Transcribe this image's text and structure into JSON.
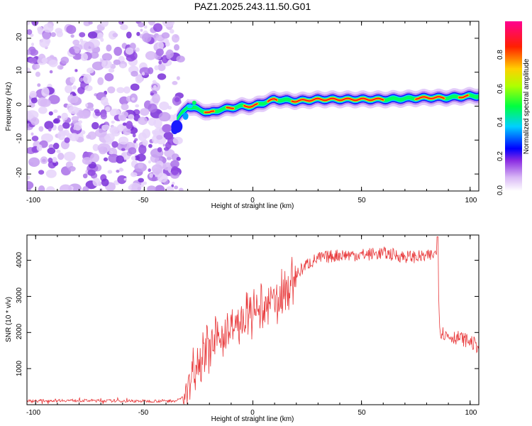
{
  "chart_data": [
    {
      "type": "heatmap",
      "title": "PAZ1.2025.243.11.50.G01",
      "xlabel": "Height of straight line (km)",
      "ylabel": "Frequency (Hz)",
      "xlim": [
        -104,
        104
      ],
      "ylim": [
        -25,
        25
      ],
      "xticks": [
        "-100",
        "-50",
        "0",
        "50",
        "100"
      ],
      "yticks": [
        "20",
        "10",
        "0",
        "-10",
        "-20"
      ],
      "colorbar": {
        "label": "Normalized spectral amplitude",
        "range": [
          0,
          1
        ],
        "ticks": [
          "0.0",
          "0.2",
          "0.4",
          "0.6",
          "0.8"
        ],
        "colormap": [
          "#ffffff",
          "#8a2be2",
          "#0000ff",
          "#00ffff",
          "#00ff00",
          "#ffff00",
          "#ff0000",
          "#ff00ff"
        ]
      },
      "noise_region_km": [
        -104,
        -35
      ],
      "ridge": {
        "height_km": [
          -35,
          -30,
          -25,
          -20,
          -15,
          -10,
          -5,
          0,
          5,
          10,
          20,
          30,
          40,
          50,
          60,
          70,
          80,
          90,
          100,
          104
        ],
        "frequency_hz": [
          -4,
          0,
          -1,
          -2,
          -1,
          -0.5,
          0,
          0,
          1,
          2,
          1.5,
          2,
          2,
          2,
          2,
          2.2,
          2.5,
          2.5,
          3,
          3
        ]
      }
    },
    {
      "type": "line",
      "xlabel": "Height of straight line (km)",
      "ylabel": "SNR (10 * v/v)",
      "xlim": [
        -104,
        104
      ],
      "ylim": [
        0,
        4700
      ],
      "xticks": [
        "-100",
        "-50",
        "0",
        "50",
        "100"
      ],
      "yticks": [
        "1000",
        "2000",
        "3000",
        "4000"
      ],
      "color": "#e8383a",
      "series": [
        {
          "name": "SNR",
          "x": [
            -104,
            -90,
            -70,
            -50,
            -35,
            -30,
            -28,
            -25,
            -20,
            -15,
            -10,
            -5,
            0,
            5,
            10,
            15,
            20,
            25,
            30,
            40,
            50,
            60,
            70,
            80,
            85,
            86,
            87,
            90,
            95,
            100,
            104
          ],
          "y": [
            100,
            120,
            110,
            100,
            110,
            300,
            900,
            1300,
            1600,
            1900,
            2100,
            2300,
            2500,
            2650,
            2850,
            3150,
            3600,
            3900,
            4050,
            4150,
            4150,
            4200,
            4100,
            4100,
            4200,
            2100,
            2000,
            1900,
            1850,
            1750,
            1600
          ]
        }
      ]
    }
  ]
}
